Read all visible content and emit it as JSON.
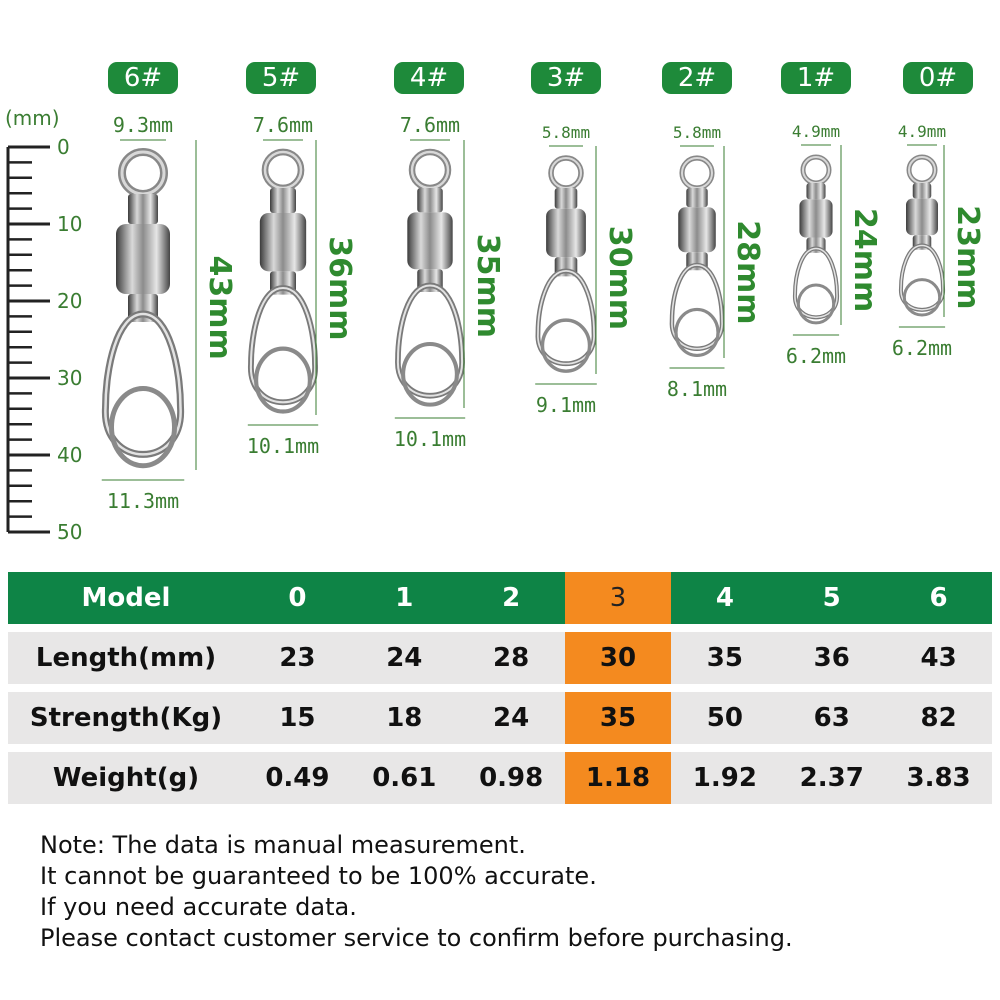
{
  "ruler": {
    "unit": "(mm)",
    "ticks": [
      "0",
      "10",
      "20",
      "30",
      "40",
      "50"
    ]
  },
  "sizes": [
    {
      "badge": "6#",
      "top_width": "9.3mm",
      "length": "43mm",
      "bottom_width": "11.3mm"
    },
    {
      "badge": "5#",
      "top_width": "7.6mm",
      "length": "36mm",
      "bottom_width": "10.1mm"
    },
    {
      "badge": "4#",
      "top_width": "7.6mm",
      "length": "35mm",
      "bottom_width": "10.1mm"
    },
    {
      "badge": "3#",
      "top_width": "5.8mm",
      "length": "30mm",
      "bottom_width": "9.1mm"
    },
    {
      "badge": "2#",
      "top_width": "5.8mm",
      "length": "28mm",
      "bottom_width": "8.1mm"
    },
    {
      "badge": "1#",
      "top_width": "4.9mm",
      "length": "24mm",
      "bottom_width": "6.2mm"
    },
    {
      "badge": "0#",
      "top_width": "4.9mm",
      "length": "23mm",
      "bottom_width": "6.2mm"
    }
  ],
  "colors": {
    "badge": "#1e8a3a",
    "dimension": "#3a7d32",
    "header": "#0e8446",
    "highlight": "#f48a1f",
    "row": "#e8e7e7"
  },
  "table": {
    "header": {
      "label": "Model",
      "values": [
        "0",
        "1",
        "2",
        "3",
        "4",
        "5",
        "6"
      ]
    },
    "rows": [
      {
        "label": "Length(mm)",
        "values": [
          "23",
          "24",
          "28",
          "30",
          "35",
          "36",
          "43"
        ]
      },
      {
        "label": "Strength(Kg)",
        "values": [
          "15",
          "18",
          "24",
          "35",
          "50",
          "63",
          "82"
        ]
      },
      {
        "label": "Weight(g)",
        "values": [
          "0.49",
          "0.61",
          "0.98",
          "1.18",
          "1.92",
          "2.37",
          "3.83"
        ]
      }
    ],
    "highlighted_model": "3"
  },
  "notes": [
    "Note: The data is manual measurement.",
    "It cannot be guaranteed to be 100% accurate.",
    "If you need accurate data.",
    "Please contact customer service to confirm before purchasing."
  ]
}
